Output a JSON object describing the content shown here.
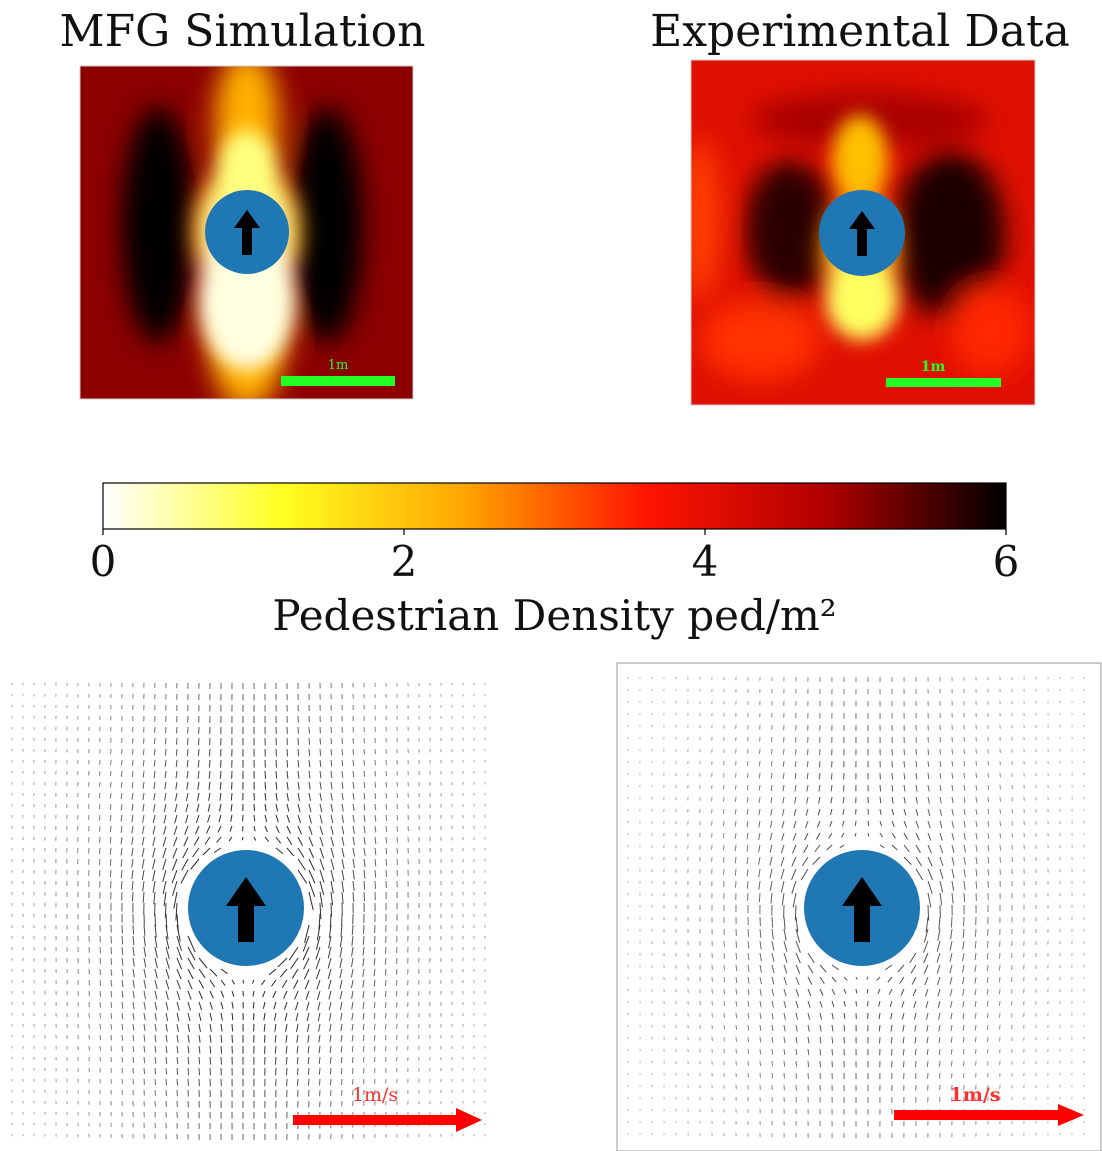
{
  "chart_data": [
    {
      "type": "heatmap",
      "title": "MFG Simulation",
      "scale_bar": {
        "label": "1m",
        "color": "#22ff22"
      },
      "obstacle": {
        "color": "#1f77b4",
        "arrow": "arrow-up-icon"
      }
    },
    {
      "type": "heatmap",
      "title": "Experimental Data",
      "scale_bar": {
        "label": "1m",
        "color": "#22ff22"
      },
      "obstacle": {
        "color": "#1f77b4",
        "arrow": "arrow-up-icon"
      }
    },
    {
      "type": "colorbar",
      "label": "Pedestrian Density ped/m²",
      "range": [
        0,
        6
      ],
      "ticks": [
        0,
        2,
        4,
        6
      ],
      "tick_labels": [
        "0",
        "2",
        "4",
        "6"
      ],
      "colormap": "hot_r",
      "colormap_stops": [
        "#ffffff",
        "#ffff20",
        "#ffa500",
        "#ff1500",
        "#b00000",
        "#000000"
      ]
    },
    {
      "type": "quiver",
      "scale_arrow": {
        "label": "1m/s",
        "color": "#ff0000"
      },
      "obstacle": {
        "color": "#1f77b4",
        "arrow": "arrow-up-icon"
      }
    },
    {
      "type": "quiver",
      "scale_arrow": {
        "label": "1m/s",
        "color": "#ff0000"
      },
      "obstacle": {
        "color": "#1f77b4",
        "arrow": "arrow-up-icon"
      }
    }
  ]
}
